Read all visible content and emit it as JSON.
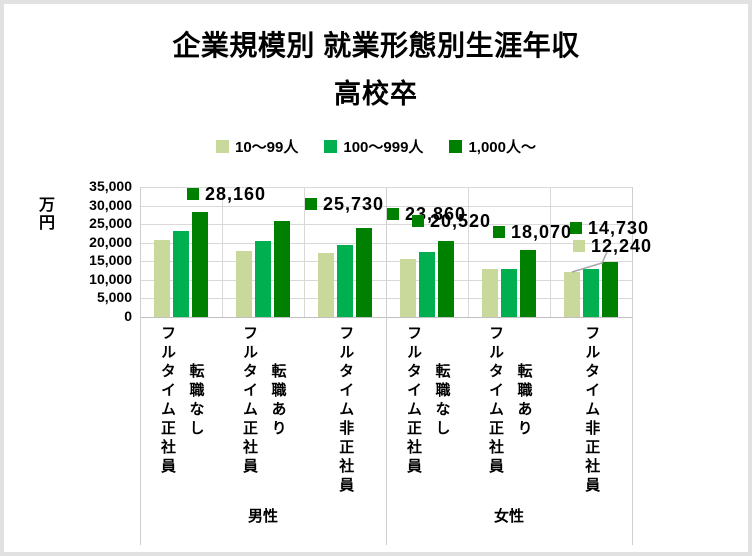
{
  "chart_data": {
    "type": "bar",
    "title": "企業規模別 就業形態別生涯年収",
    "subtitle": "高校卒",
    "ylabel": "万円",
    "ylim": [
      0,
      35000
    ],
    "ytick_step": 5000,
    "yticks": [
      "0",
      "5,000",
      "10,000",
      "15,000",
      "20,000",
      "25,000",
      "30,000",
      "35,000"
    ],
    "grid": true,
    "legend_position": "top-center",
    "gridline_color": "#d9d9d9",
    "axis_line_color": "#bfbfbf",
    "leader_line_color": "#a6a6a6",
    "group_labels": [
      "男性",
      "女性"
    ],
    "categories": [
      {
        "lines": [
          "フルタイム正社員",
          "転職なし"
        ],
        "group": "男性"
      },
      {
        "lines": [
          "フルタイム正社員",
          "転職あり"
        ],
        "group": "男性"
      },
      {
        "lines": [
          "フルタイム非正社員"
        ],
        "group": "男性"
      },
      {
        "lines": [
          "フルタイム正社員",
          "転職なし"
        ],
        "group": "女性"
      },
      {
        "lines": [
          "フルタイム正社員",
          "転職あり"
        ],
        "group": "女性"
      },
      {
        "lines": [
          "フルタイム非正社員"
        ],
        "group": "女性"
      }
    ],
    "series": [
      {
        "name": "10～99人",
        "color": "#c9d89b",
        "values": [
          20700,
          17750,
          17150,
          15600,
          12900,
          12240
        ]
      },
      {
        "name": "100～999人",
        "color": "#00b050",
        "values": [
          23300,
          20450,
          19300,
          17550,
          12900,
          12850
        ]
      },
      {
        "name": "1,000人～",
        "color": "#008000",
        "values": [
          28160,
          25730,
          23860,
          20520,
          18070,
          14730
        ]
      }
    ],
    "data_labels": [
      {
        "series_index": 2,
        "category_index": 0,
        "value_text": "28,160"
      },
      {
        "series_index": 2,
        "category_index": 1,
        "value_text": "25,730"
      },
      {
        "series_index": 2,
        "category_index": 2,
        "value_text": "23,860"
      },
      {
        "series_index": 2,
        "category_index": 3,
        "value_text": "20,520"
      },
      {
        "series_index": 2,
        "category_index": 4,
        "value_text": "18,070"
      },
      {
        "series_index": 2,
        "category_index": 5,
        "value_text": "14,730"
      },
      {
        "series_index": 0,
        "category_index": 5,
        "value_text": "12,240",
        "leader_line": true
      }
    ]
  }
}
